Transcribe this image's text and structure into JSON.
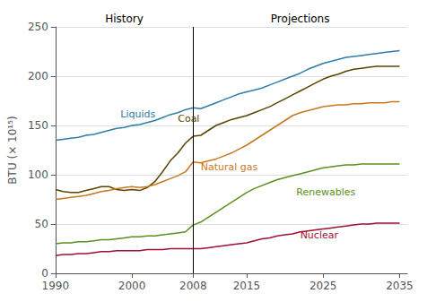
{
  "chart_data": {
    "type": "line",
    "ylabel": "BTU (× 10¹⁵)",
    "x": [
      1990,
      1991,
      1992,
      1993,
      1994,
      1995,
      1996,
      1997,
      1998,
      1999,
      2000,
      2001,
      2002,
      2003,
      2004,
      2005,
      2006,
      2007,
      2008,
      2009,
      2010,
      2011,
      2012,
      2013,
      2014,
      2015,
      2016,
      2017,
      2018,
      2019,
      2020,
      2021,
      2022,
      2023,
      2024,
      2025,
      2026,
      2027,
      2028,
      2029,
      2030,
      2031,
      2032,
      2033,
      2034,
      2035
    ],
    "series": [
      {
        "name": "Liquids",
        "color": "#2e7ea8",
        "label_at": [
          1998.5,
          161
        ],
        "values": [
          135,
          136,
          137,
          138,
          140,
          141,
          143,
          145,
          147,
          148,
          150,
          151,
          153,
          155,
          158,
          161,
          163,
          166,
          168,
          167,
          170,
          173,
          176,
          179,
          182,
          184,
          186,
          188,
          191,
          194,
          197,
          200,
          203,
          207,
          210,
          213,
          215,
          217,
          219,
          220,
          221,
          222,
          223,
          224,
          225,
          226
        ]
      },
      {
        "name": "Coal",
        "color": "#5a4500",
        "label_at": [
          2006.0,
          157
        ],
        "values": [
          85,
          83,
          82,
          82,
          84,
          86,
          88,
          88,
          85,
          84,
          85,
          84,
          87,
          93,
          103,
          114,
          122,
          132,
          139,
          140,
          145,
          150,
          153,
          156,
          158,
          160,
          163,
          166,
          169,
          173,
          177,
          181,
          185,
          189,
          193,
          197,
          200,
          202,
          205,
          207,
          208,
          209,
          210,
          210,
          210,
          210
        ]
      },
      {
        "name": "Natural gas",
        "color": "#c8781e",
        "label_at": [
          2009.0,
          108
        ],
        "values": [
          75,
          76,
          77,
          78,
          79,
          81,
          83,
          84,
          86,
          87,
          88,
          87,
          88,
          90,
          93,
          96,
          99,
          103,
          113,
          112,
          114,
          116,
          119,
          122,
          126,
          130,
          135,
          140,
          145,
          150,
          155,
          160,
          163,
          165,
          167,
          169,
          170,
          171,
          171,
          172,
          172,
          173,
          173,
          173,
          174,
          174
        ]
      },
      {
        "name": "Renewables",
        "color": "#5a9020",
        "label_at": [
          2021.5,
          82
        ],
        "values": [
          30,
          31,
          31,
          32,
          32,
          33,
          34,
          34,
          35,
          36,
          37,
          37,
          38,
          38,
          39,
          40,
          41,
          42,
          49,
          52,
          57,
          62,
          67,
          72,
          77,
          82,
          86,
          89,
          92,
          95,
          97,
          99,
          101,
          103,
          105,
          107,
          108,
          109,
          110,
          110,
          111,
          111,
          111,
          111,
          111,
          111
        ]
      },
      {
        "name": "Nuclear",
        "color": "#a01030",
        "label_at": [
          2022.0,
          39
        ],
        "values": [
          18,
          19,
          19,
          20,
          20,
          21,
          22,
          22,
          23,
          23,
          23,
          23,
          24,
          24,
          24,
          25,
          25,
          25,
          25,
          25,
          26,
          27,
          28,
          29,
          30,
          31,
          33,
          35,
          36,
          38,
          39,
          40,
          42,
          43,
          44,
          45,
          46,
          47,
          48,
          49,
          50,
          50,
          51,
          51,
          51,
          51
        ]
      }
    ],
    "xlim": [
      1990,
      2036
    ],
    "xticks": [
      1990,
      2000,
      2008,
      2015,
      2025,
      2035
    ],
    "ylim": [
      0,
      250
    ],
    "yticks": [
      0,
      50,
      100,
      150,
      200,
      250
    ],
    "grid": true,
    "divider_x": 2008,
    "annotations": [
      {
        "text": "History",
        "x": 1999,
        "y": 250
      },
      {
        "text": "Projections",
        "x": 2022,
        "y": 250
      }
    ]
  }
}
